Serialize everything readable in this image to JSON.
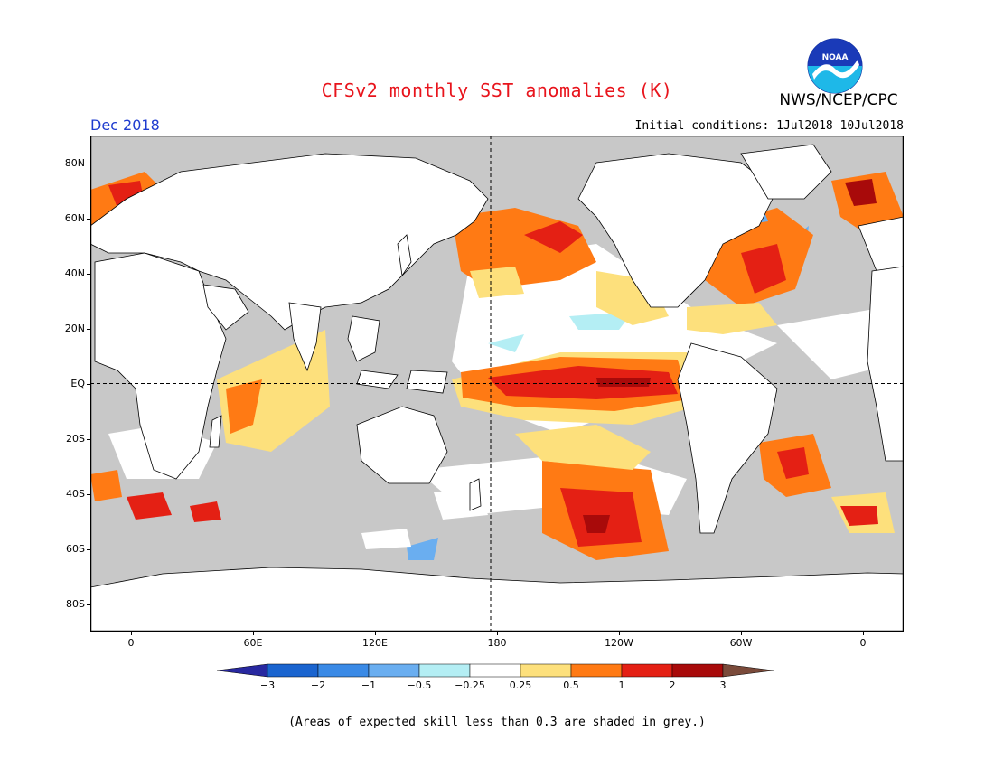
{
  "title": "CFSv2 monthly SST anomalies (K)",
  "agency": "NWS/NCEP/CPC",
  "logo_text": "NOAA",
  "valid_month": "Dec 2018",
  "initial_conditions": "Initial conditions: 1Jul2018–10Jul2018",
  "footnote": "(Areas of expected skill less than 0.3 are shaded in grey.)",
  "lat_labels": [
    "80N",
    "60N",
    "40N",
    "20N",
    "EQ",
    "20S",
    "40S",
    "60S",
    "80S"
  ],
  "lon_labels": [
    "0",
    "60E",
    "120E",
    "180",
    "120W",
    "60W",
    "0"
  ],
  "colorbar": {
    "labels": [
      "−3",
      "−2",
      "−1",
      "−0.5",
      "−0.25",
      "0.25",
      "0.5",
      "1",
      "2",
      "3"
    ],
    "colors": [
      "#2828a0",
      "#1a64cf",
      "#3a8ae6",
      "#6aaef0",
      "#b4eef4",
      "#ffffff",
      "#fde07c",
      "#ff7a14",
      "#e42014",
      "#a80a0a",
      "#7a4a3a"
    ],
    "low_end_color": "#2828a0",
    "high_end_color": "#7a4a3a"
  },
  "map": {
    "ocean_grey": "#c8c8c8",
    "land_color": "#ffffff",
    "projection": "equirectangular",
    "lon_range": [
      -20,
      380
    ],
    "lat_range": [
      -90,
      90
    ]
  }
}
